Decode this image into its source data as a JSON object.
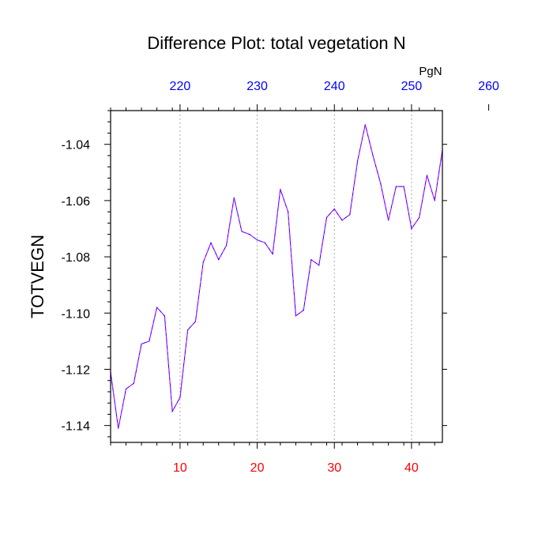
{
  "chart_data": {
    "type": "line",
    "title": "Difference Plot: total vegetation N",
    "ylabel": "TOTVEGN",
    "xlabel": "",
    "top_axis_unit": "PgN",
    "xlim": [
      1,
      44
    ],
    "ylim": [
      -1.146,
      -1.028
    ],
    "x_ticks": [
      10,
      20,
      30,
      40
    ],
    "x_tick_labels": [
      "10",
      "20",
      "30",
      "40"
    ],
    "top_x_ticks": [
      220,
      230,
      240,
      250,
      260
    ],
    "top_x_tick_labels": [
      "220",
      "230",
      "240",
      "250",
      "260"
    ],
    "top_axis_offset": 210,
    "y_ticks": [
      -1.14,
      -1.12,
      -1.1,
      -1.08,
      -1.06,
      -1.04
    ],
    "y_tick_labels": [
      "-1.14",
      "-1.12",
      "-1.10",
      "-1.08",
      "-1.06",
      "-1.04"
    ],
    "grid": "vertical dotted",
    "colors": {
      "bottom_tick_labels": "#ff0000",
      "top_tick_labels": "#0000ff",
      "series_line": "#0000ff",
      "series_dash": "#ff00ff",
      "grid": "#aaaaaa"
    },
    "series": [
      {
        "x": [
          1,
          2,
          3,
          4,
          5,
          6,
          7,
          8,
          9,
          10,
          11,
          12,
          13,
          14,
          15,
          16,
          17,
          18,
          19,
          20,
          21,
          22,
          23,
          24,
          25,
          26,
          27,
          28,
          29,
          30,
          31,
          32,
          33,
          34,
          35,
          36,
          37,
          38,
          39,
          40,
          41,
          42,
          43,
          44
        ],
        "values": [
          -1.121,
          -1.141,
          -1.127,
          -1.125,
          -1.111,
          -1.11,
          -1.098,
          -1.101,
          -1.135,
          -1.13,
          -1.106,
          -1.103,
          -1.082,
          -1.075,
          -1.081,
          -1.076,
          -1.059,
          -1.071,
          -1.072,
          -1.074,
          -1.075,
          -1.079,
          -1.056,
          -1.064,
          -1.101,
          -1.099,
          -1.081,
          -1.083,
          -1.066,
          -1.063,
          -1.067,
          -1.065,
          -1.046,
          -1.033,
          -1.044,
          -1.054,
          -1.067,
          -1.055,
          -1.055,
          -1.07,
          -1.066,
          -1.051,
          -1.06,
          -1.042
        ]
      }
    ]
  }
}
